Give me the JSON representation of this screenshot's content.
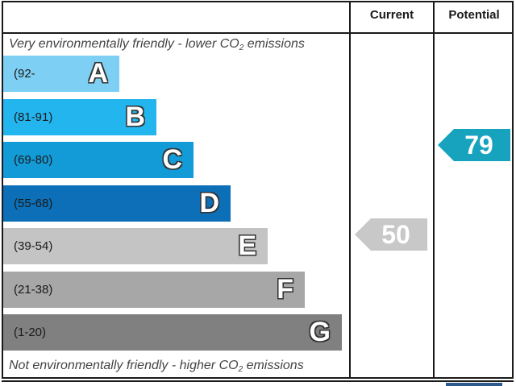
{
  "chart_data": {
    "type": "bar",
    "header": {
      "current": "Current",
      "potential": "Potential"
    },
    "top_note": {
      "text": "Very environmentally friendly - lower CO",
      "sub": "2",
      "after": " emissions"
    },
    "bottom_note": {
      "text": "Not environmentally friendly - higher CO",
      "sub": "2",
      "after": " emissions"
    },
    "bands": [
      {
        "letter": "A",
        "range": "(92-",
        "color": "#7dcff3"
      },
      {
        "letter": "B",
        "range": "(81-91)",
        "color": "#23b5ee"
      },
      {
        "letter": "C",
        "range": "(69-80)",
        "color": "#139bd8"
      },
      {
        "letter": "D",
        "range": "(55-68)",
        "color": "#0c6fb7"
      },
      {
        "letter": "E",
        "range": "(39-54)",
        "color": "#c4c4c4"
      },
      {
        "letter": "F",
        "range": "(21-38)",
        "color": "#a7a7a7"
      },
      {
        "letter": "G",
        "range": "(1-20)",
        "color": "#808080"
      }
    ],
    "current": {
      "value": "50",
      "band": "E",
      "color": "#c8c8c8"
    },
    "potential": {
      "value": "79",
      "band": "C",
      "color": "#17a3bd"
    }
  }
}
